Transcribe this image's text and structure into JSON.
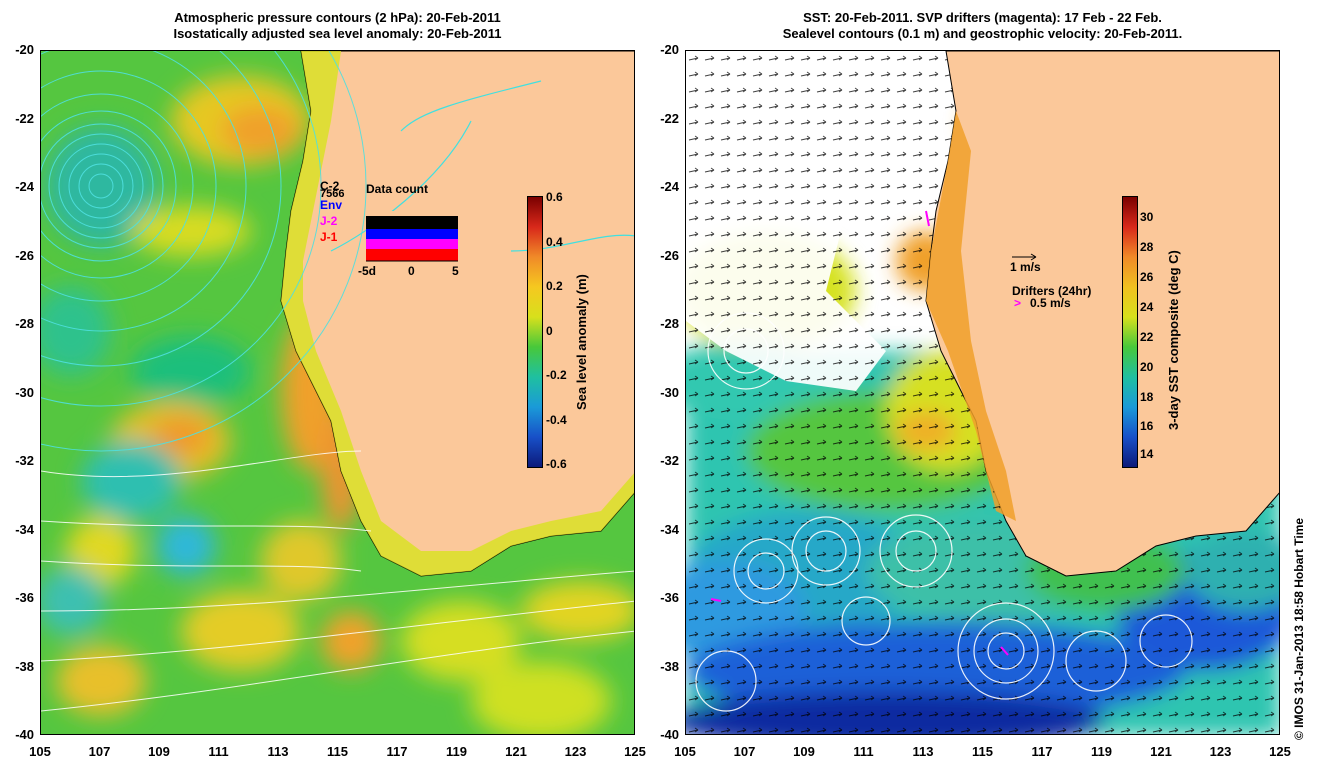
{
  "left_panel": {
    "title_line1": "Atmospheric pressure contours (2 hPa): 20-Feb-2011",
    "title_line2": "Isostatically adjusted sea level anomaly: 20-Feb-2011",
    "colorbar": {
      "label": "Sea level anomaly (m)",
      "ticks": [
        "0.6",
        "0.4",
        "0.2",
        "0",
        "-0.2",
        "-0.4",
        "-0.6"
      ]
    },
    "satellite_legend": {
      "items": [
        {
          "label": "C-2",
          "color": "#000000"
        },
        {
          "label": "7566",
          "color": "#000000"
        },
        {
          "label": "Env",
          "color": "#0000ff"
        },
        {
          "label": "J-2",
          "color": "#ff00ff"
        },
        {
          "label": "J-1",
          "color": "#ff0000"
        }
      ],
      "inset_title": "Data count",
      "inset_ticks": [
        "-5d",
        "0",
        "5"
      ]
    }
  },
  "right_panel": {
    "title_line1": "SST: 20-Feb-2011. SVP drifters (magenta): 17 Feb - 22 Feb.",
    "title_line2": "Sealevel contours (0.1 m) and geostrophic velocity: 20-Feb-2011.",
    "colorbar": {
      "label": "3-day SST composite (deg C)",
      "ticks": [
        "30",
        "28",
        "26",
        "24",
        "22",
        "20",
        "18",
        "16",
        "14"
      ]
    },
    "velocity_key": "1 m/s",
    "drifters_key_title": "Drifters (24hr)",
    "drifters_key_value": "0.5 m/s"
  },
  "axes": {
    "lat_ticks": [
      "-20",
      "-22",
      "-24",
      "-26",
      "-28",
      "-30",
      "-32",
      "-34",
      "-36",
      "-38",
      "-40"
    ],
    "lon_ticks": [
      "105",
      "107",
      "109",
      "111",
      "113",
      "115",
      "117",
      "119",
      "121",
      "123",
      "125"
    ]
  },
  "credit": "© IMOS 31-Jan-2013 18:58 Hobart Time",
  "colors": {
    "land": "#fbc89a",
    "ocean_green": "#4fc83c",
    "ocean_yellow": "#d4e21c",
    "ocean_orange": "#f2a12a",
    "ocean_cyan": "#2fc3c0",
    "sst_blue": "#1f4fd8",
    "sst_deep_blue": "#0a1a9a"
  }
}
